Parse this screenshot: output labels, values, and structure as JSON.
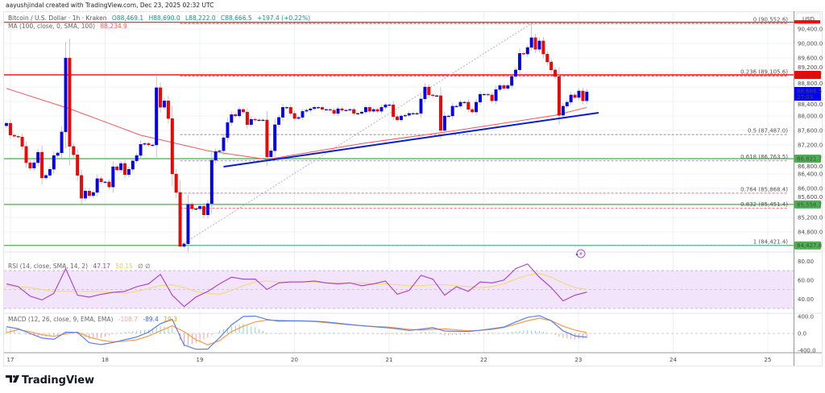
{
  "credit": "aayushjindal created with TradingView.com, Dec 23, 2025 02:32 UTC",
  "legend": {
    "symbol": "Bitcoin / U.S. Dollar · 1h · Kraken",
    "open": "O88,469.1",
    "high": "H88,690.0",
    "low": "L88,222.0",
    "close": "C88,666.5",
    "change": "+197.4 (+0.22%)",
    "ma_label": "MA (100, close, 0, SMA, 100)",
    "ma_value": "88,234.9"
  },
  "price_axis": {
    "currency": "USD",
    "ticks": [
      "90,400.0",
      "90,000.0",
      "89,600.0",
      "89,200.0",
      "88,800.0",
      "88,400.0",
      "88,000.0",
      "87,600.0",
      "87,200.0",
      "86,800.0",
      "86,400.0",
      "86,000.0",
      "85,600.0",
      "85,200.0",
      "84,800.0"
    ],
    "current_price": "88,666.5",
    "countdown": "27:03"
  },
  "time_axis": {
    "ticks": [
      "17",
      "18",
      "19",
      "20",
      "21",
      "22",
      "23",
      "24",
      "25"
    ]
  },
  "rsi": {
    "label": "RSI (14, close, SMA, 14, 2)",
    "value": "47.17",
    "ma_value": "50.15",
    "extra": "∅  ∅",
    "ticks": [
      "80.00",
      "60.00",
      "40.00"
    ]
  },
  "macd": {
    "label": "MACD (12, 26, close, 9, EMA, EMA)",
    "histogram_value": "-108.7",
    "macd_value": "-89.4",
    "signal_value": "19.3",
    "ticks": [
      "400.0",
      "0.0",
      "-400.0"
    ]
  },
  "horizontal_levels": [
    {
      "price": 89134.7,
      "label": "89,134.7",
      "color": "#ff0000"
    },
    {
      "price": 86821.7,
      "label": "86,821.7",
      "color": "#4caf50"
    },
    {
      "price": 85558.7,
      "label": "85,558.7",
      "color": "#4caf50"
    },
    {
      "price": 84427.8,
      "label": "84,427.8",
      "color": "#4caf50"
    }
  ],
  "fib_levels": [
    {
      "ratio": "0",
      "price": 90552.6,
      "label": "0 (90,552.6)",
      "color": "#ff3030",
      "label_color": "#787b86"
    },
    {
      "ratio": "0.236",
      "price": 89105.6,
      "label": "0.236 (89,105.6)",
      "color": "#f23645",
      "label_color": "#f23645"
    },
    {
      "ratio": "0.5",
      "price": 87487.0,
      "label": "0.5 (87,487.0)",
      "color": "#a1887f",
      "label_color": "#7d5f5f"
    },
    {
      "ratio": "0.618",
      "price": 86763.5,
      "label": "0.618 (86,763.5)",
      "color": "#4dc3b0",
      "label_color": "#4dc3b0"
    },
    {
      "ratio": "0.764",
      "price": 85868.4,
      "label": "0.764 (85,868.4)",
      "color": "#ff6b6b",
      "label_color": "#e53935"
    },
    {
      "ratio": "0.832",
      "price": 85451.4,
      "label": "0.832 (85,451.4)",
      "color": "#ff6b6b",
      "label_color": "#ef5350"
    },
    {
      "ratio": "1",
      "price": 84421.4,
      "label": "1 (84,421.4)",
      "color": "#64b5f6",
      "label_color": "#64b5f6"
    }
  ],
  "colors": {
    "up": "#0000ff",
    "down": "#ff0000",
    "ma": "#ff5252",
    "trendline": "#0a1cd6",
    "rsi": "#a83ec5",
    "rsi_ma": "#f5d76e",
    "rsi_band": "#f1e4fb",
    "macd": "#5b7cf0",
    "signal": "#ff9a45",
    "hist_up": "#4fbfa8",
    "hist_down": "#f26b6b",
    "current_price": "#0000ff"
  },
  "brand": "TradingView",
  "chart_data": {
    "type": "candlestick",
    "interval": "1h",
    "x_start": "2025-12-16 23:00",
    "first_open": 87730,
    "ylim": [
      84600,
      90650
    ],
    "grid": true,
    "close": [
      87800,
      87470,
      87440,
      87420,
      87160,
      86710,
      86560,
      86710,
      87000,
      86290,
      86360,
      86530,
      86910,
      86980,
      87560,
      89600,
      87160,
      86930,
      86360,
      85730,
      85930,
      85800,
      85890,
      86270,
      86180,
      86180,
      86040,
      86600,
      86510,
      86690,
      86380,
      86530,
      86760,
      86910,
      87220,
      87240,
      87200,
      87200,
      88780,
      88240,
      88420,
      87930,
      86400,
      85890,
      84400,
      84470,
      85560,
      85440,
      85440,
      85510,
      85270,
      85580,
      86780,
      87020,
      87040,
      87400,
      87820,
      88040,
      88000,
      88180,
      88110,
      87760,
      87910,
      87890,
      87890,
      87890,
      86870,
      87040,
      87760,
      87960,
      88240,
      88240,
      88070,
      87930,
      87960,
      88130,
      88160,
      88200,
      88240,
      88240,
      88180,
      88180,
      88160,
      88070,
      88200,
      88160,
      88160,
      88180,
      88070,
      88070,
      88110,
      88240,
      88130,
      88180,
      88130,
      88240,
      88310,
      88310,
      87980,
      87890,
      88000,
      88020,
      88070,
      88070,
      88070,
      88470,
      88800,
      88580,
      88560,
      88560,
      87600,
      88000,
      88000,
      88270,
      88270,
      88380,
      88380,
      88180,
      88110,
      88380,
      88600,
      88600,
      88580,
      88420,
      88730,
      88840,
      88760,
      88840,
      89090,
      89270,
      89730,
      89710,
      89890,
      90160,
      89840,
      90070,
      89710,
      89490,
      89270,
      89090,
      88020,
      88270,
      88380,
      88580,
      88510,
      88690,
      88420,
      88666.5
    ],
    "swing_high": 90552.6,
    "swing_low": 84421.4,
    "ma100": [
      {
        "time": "2025-12-16 23:00",
        "value": 88760
      },
      {
        "time": "2025-12-17 15:00",
        "value": 88200
      },
      {
        "time": "2025-12-18 09:00",
        "value": 87470
      },
      {
        "time": "2025-12-19 02:00",
        "value": 87040
      },
      {
        "time": "2025-12-19 17:00",
        "value": 86800
      },
      {
        "time": "2025-12-20 17:00",
        "value": 87240
      },
      {
        "time": "2025-12-21 17:00",
        "value": 87600
      },
      {
        "time": "2025-12-22 18:00",
        "value": 88020
      },
      {
        "time": "2025-12-23 02:00",
        "value": 88234.9
      }
    ],
    "trendline": {
      "start": {
        "time": "2025-12-19 06:00",
        "price": 86600
      },
      "end": {
        "time": "2025-12-23 05:00",
        "price": 88090
      }
    },
    "rsi_ylim": [
      20,
      85
    ],
    "rsi_values": [
      56,
      53,
      43,
      39,
      46,
      72,
      44,
      42,
      45,
      47,
      48,
      53,
      56,
      66,
      44,
      32,
      42,
      48,
      56,
      63,
      61,
      61,
      50,
      57,
      58,
      58,
      59,
      57,
      56,
      57,
      54,
      56,
      59,
      45,
      49,
      65,
      61,
      44,
      53,
      48,
      58,
      57,
      60,
      72,
      77,
      63,
      52,
      38,
      44,
      47.17
    ],
    "rsi_ma_values": [
      54,
      53,
      52,
      50,
      48,
      48,
      48,
      48,
      48,
      47,
      46,
      48,
      51,
      54,
      55,
      52,
      48,
      46,
      45,
      49,
      54,
      58,
      59,
      58,
      58,
      58,
      58,
      57,
      57,
      57,
      57,
      56,
      56,
      55,
      54,
      54,
      55,
      55,
      54,
      53,
      52,
      53,
      56,
      61,
      65,
      67,
      63,
      57,
      52,
      50.15
    ],
    "macd_values": [
      160,
      110,
      0,
      -110,
      -140,
      30,
      20,
      -220,
      -265,
      -215,
      -150,
      -85,
      30,
      230,
      330,
      -275,
      -375,
      -370,
      -100,
      200,
      400,
      410,
      330,
      290,
      298,
      293,
      288,
      270,
      240,
      210,
      182,
      158,
      137,
      110,
      70,
      100,
      135,
      57,
      50,
      45,
      75,
      110,
      150,
      270,
      380,
      420,
      300,
      60,
      -60,
      -89.4
    ],
    "signal_values": [
      20,
      90,
      40,
      -30,
      -70,
      -10,
      30,
      -90,
      -160,
      -200,
      -185,
      -150,
      -60,
      60,
      180,
      40,
      -150,
      -270,
      -170,
      40,
      170,
      270,
      315,
      310,
      300,
      297,
      280,
      255,
      228,
      205,
      185,
      165,
      155,
      130,
      95,
      78,
      95,
      108,
      85,
      62,
      70,
      95,
      140,
      220,
      300,
      360,
      300,
      170,
      80,
      19.3
    ]
  }
}
